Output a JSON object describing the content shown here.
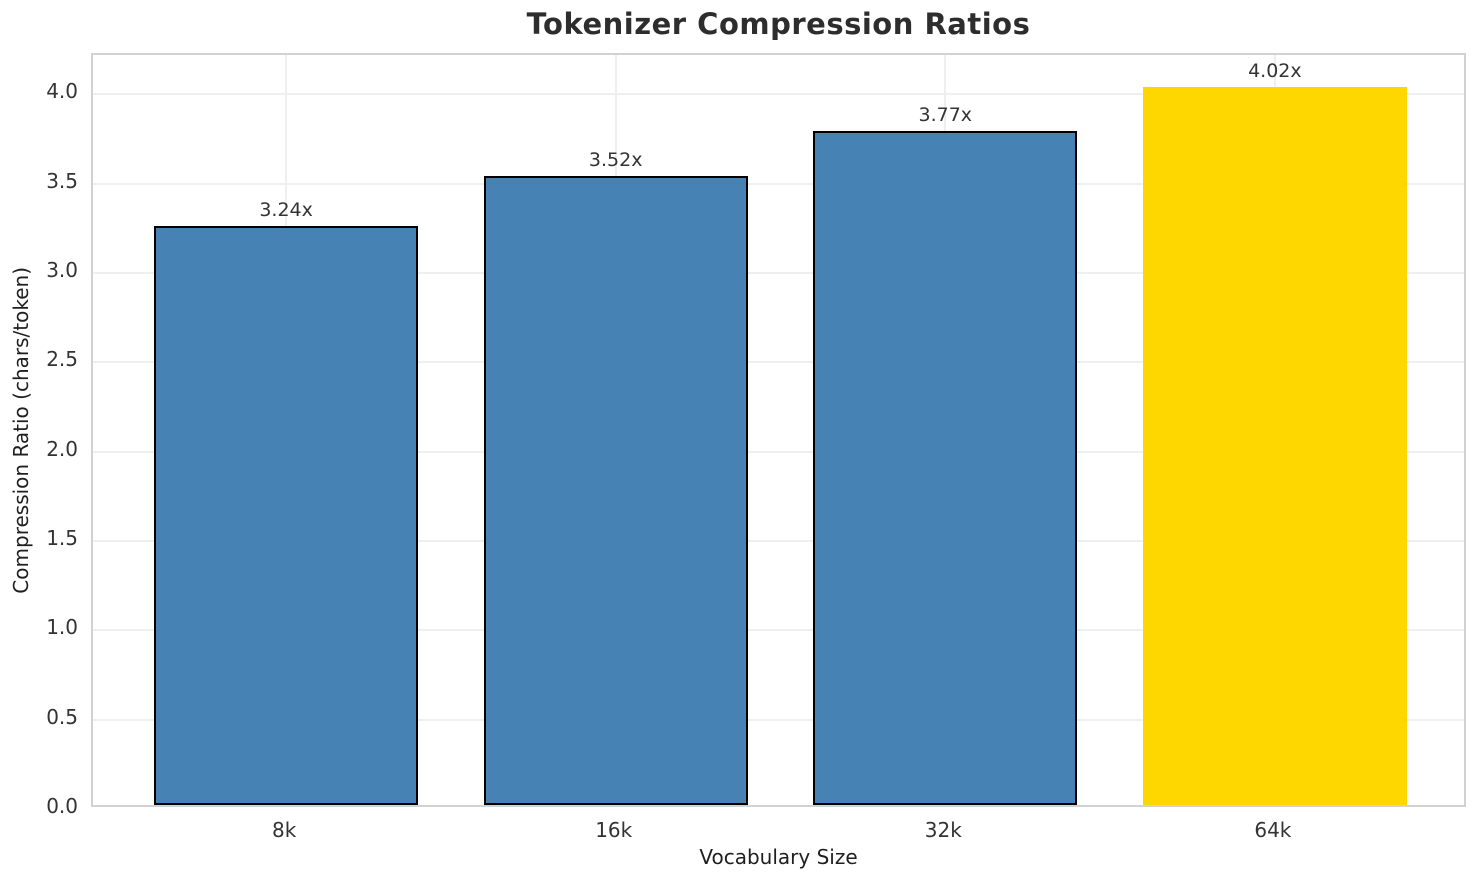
{
  "chart_data": {
    "type": "bar",
    "title": "Tokenizer Compression Ratios",
    "xlabel": "Vocabulary Size",
    "ylabel": "Compression Ratio (chars/token)",
    "categories": [
      "8k",
      "16k",
      "32k",
      "64k"
    ],
    "values": [
      3.24,
      3.52,
      3.77,
      4.02
    ],
    "value_labels": [
      "3.24x",
      "3.52x",
      "3.77x",
      "4.02x"
    ],
    "bar_colors": [
      "#4682B4",
      "#4682B4",
      "#4682B4",
      "#FFD700"
    ],
    "bar_edge_colors": [
      "#000000",
      "#000000",
      "#000000",
      "none"
    ],
    "highlight_color": "#FFD700",
    "base_bar_color": "#4682B4",
    "ytick_labels": [
      "0.0",
      "0.5",
      "1.0",
      "1.5",
      "2.0",
      "2.5",
      "3.0",
      "3.5",
      "4.0"
    ],
    "ytick_values": [
      0.0,
      0.5,
      1.0,
      1.5,
      2.0,
      2.5,
      3.0,
      3.5,
      4.0
    ],
    "ylim": [
      0,
      4.22
    ],
    "grid": true,
    "grid_color": "#efefef",
    "spine_color": "#d2d2d2",
    "legend": "none"
  }
}
